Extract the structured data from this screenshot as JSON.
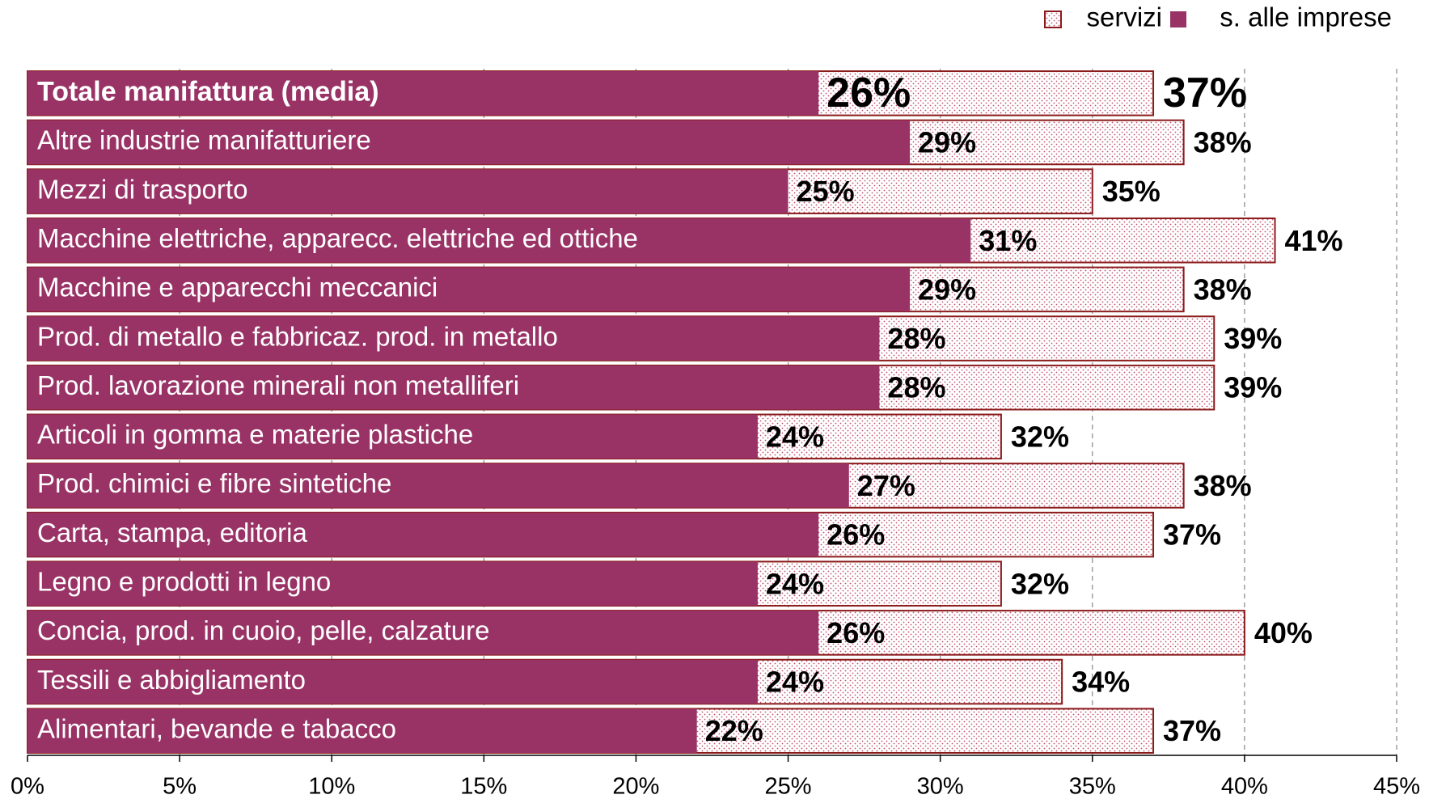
{
  "chart_data": {
    "type": "bar",
    "categories": [
      "Totale manifattura (media)",
      "Altre industrie manifatturiere",
      "Mezzi di trasporto",
      "Macchine elettriche, apparecc. elettriche ed ottiche",
      "Macchine e apparecchi meccanici",
      "Prod. di metallo e fabbricaz. prod. in metallo",
      "Prod. lavorazione minerali non metalliferi",
      "Articoli in gomma e materie plastiche",
      "Prod. chimici e fibre sintetiche",
      "Carta, stampa, editoria",
      "Legno e prodotti in legno",
      "Concia, prod. in cuoio, pelle, calzature",
      "Tessili e abbigliamento",
      "Alimentari, bevande e tabacco"
    ],
    "series": [
      {
        "name": "servizi",
        "color": "#8b1a1a",
        "values": [
          37,
          38,
          35,
          41,
          38,
          39,
          39,
          32,
          38,
          37,
          32,
          40,
          34,
          37
        ],
        "value_labels": [
          "37%",
          "38%",
          "35%",
          "41%",
          "38%",
          "39%",
          "39%",
          "32%",
          "38%",
          "37%",
          "32%",
          "40%",
          "34%",
          "37%"
        ]
      },
      {
        "name": "s. alle imprese",
        "color": "#993366",
        "values": [
          26,
          29,
          25,
          31,
          29,
          28,
          28,
          24,
          27,
          26,
          24,
          26,
          24,
          22
        ],
        "value_labels": [
          "26%",
          "29%",
          "25%",
          "31%",
          "29%",
          "28%",
          "28%",
          "24%",
          "27%",
          "26%",
          "24%",
          "26%",
          "24%",
          "22%"
        ]
      }
    ],
    "xlim": [
      0,
      45
    ],
    "xticks": [
      {
        "value": 0,
        "label": "0%"
      },
      {
        "value": 5,
        "label": "5%"
      },
      {
        "value": 10,
        "label": "10%"
      },
      {
        "value": 15,
        "label": "15%"
      },
      {
        "value": 20,
        "label": "20%"
      },
      {
        "value": 25,
        "label": "25%"
      },
      {
        "value": 30,
        "label": "30%"
      },
      {
        "value": 35,
        "label": "35%"
      },
      {
        "value": 40,
        "label": "40%"
      },
      {
        "value": 45,
        "label": "45%"
      }
    ],
    "grid": true,
    "legend": "top-right"
  }
}
